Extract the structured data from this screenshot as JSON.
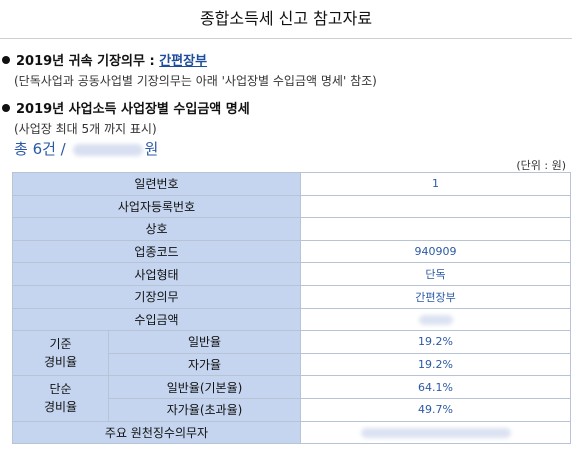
{
  "page": {
    "title": "종합소득세 신고 참고자료"
  },
  "section1": {
    "heading_prefix": "2019년 귀속 기장의무 : ",
    "heading_link": "간편장부",
    "note": "(단독사업과 공동사업별 기장의무는 아래 '사업장별 수입금액 명세' 참조)"
  },
  "section2": {
    "heading": "2019년 사업소득 사업장별 수입금액 명세",
    "note": "(사업장 최대 5개 까지 표시)"
  },
  "summary": {
    "prefix": "총 6건 / ",
    "suffix": "원"
  },
  "unit": "(단위 : 원)",
  "table": {
    "seq_label": "일련번호",
    "seq_value": "1",
    "regno_label": "사업자등록번호",
    "regno_value": "",
    "name_label": "상호",
    "name_value": "",
    "code_label": "업종코드",
    "code_value": "940909",
    "type_label": "사업형태",
    "type_value": "단독",
    "duty_label": "기장의무",
    "duty_value": "간편장부",
    "income_label": "수입금액",
    "std_group": "기준\n경비율",
    "std_general_label": "일반율",
    "std_general_value": "19.2%",
    "std_self_label": "자가율",
    "std_self_value": "19.2%",
    "simple_group": "단순\n경비율",
    "simple_general_label": "일반율(기본율)",
    "simple_general_value": "64.1%",
    "simple_self_label": "자가율(초과율)",
    "simple_self_value": "49.7%",
    "withholding_label": "주요 원천징수의무자"
  }
}
